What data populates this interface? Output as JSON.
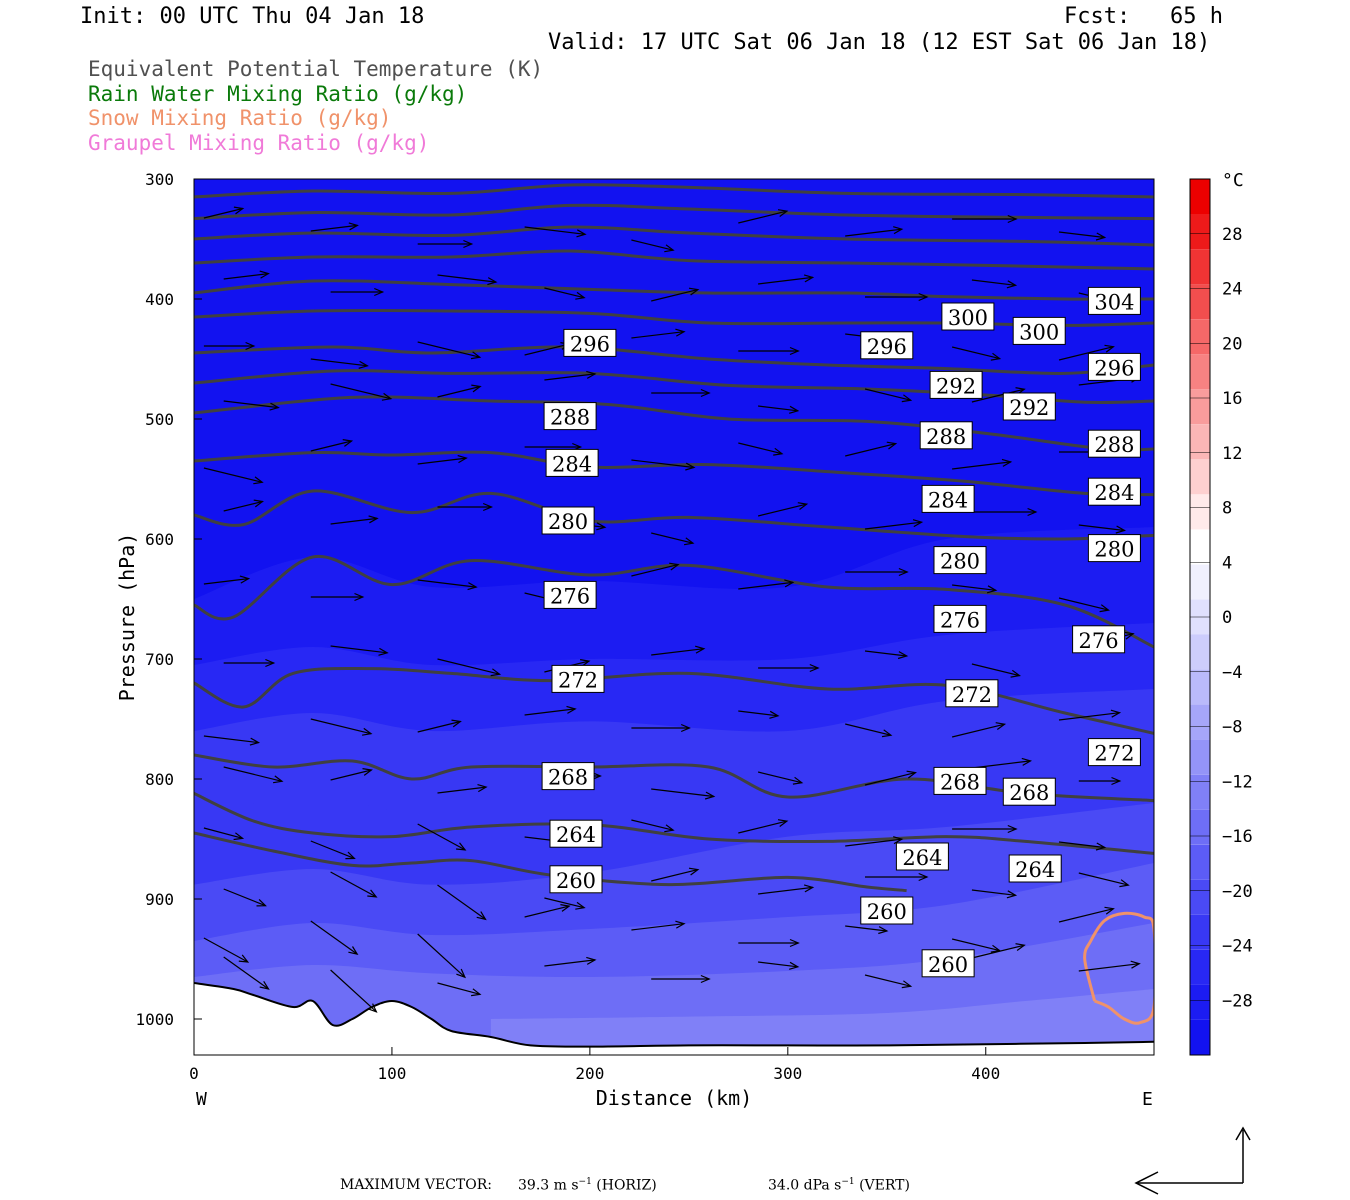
{
  "header": {
    "init": "Init: 00 UTC Thu 04 Jan 18",
    "fcst": "Fcst:   65 h",
    "valid": "Valid: 17 UTC Sat 06 Jan 18 (12 EST Sat 06 Jan 18)"
  },
  "legend": [
    {
      "label": "Equivalent Potential Temperature (K)",
      "color": "#505050"
    },
    {
      "label": "Rain Water Mixing Ratio (g/kg)",
      "color": "#0a7a0a"
    },
    {
      "label": "Snow Mixing Ratio (g/kg)",
      "color": "#f0926a"
    },
    {
      "label": "Graupel Mixing Ratio (g/kg)",
      "color": "#f07ad8"
    }
  ],
  "colorbar": {
    "unit": "°C",
    "tick_labels": [
      "28",
      "24",
      "20",
      "16",
      "12",
      "8",
      "4",
      "0",
      "−4",
      "−8",
      "−12",
      "−16",
      "−20",
      "−24",
      "−28"
    ],
    "tick_values": [
      28,
      24,
      20,
      16,
      12,
      8,
      4,
      0,
      -4,
      -8,
      -12,
      -16,
      -20,
      -24,
      -28
    ],
    "range": [
      -32,
      32
    ],
    "colors": [
      "#1212f0",
      "#1c1cf2",
      "#2828f4",
      "#3838f4",
      "#4a4af5",
      "#5c5cf6",
      "#6e6ef6",
      "#8080f7",
      "#9494f8",
      "#a6a6f9",
      "#babafb",
      "#cdcdfc",
      "#e0e0fd",
      "#f0f0fe",
      "#ffffff",
      "#ffeaea",
      "#fdd0d0",
      "#fbb6b6",
      "#f99c9c",
      "#f78282",
      "#f56868",
      "#f24e4e",
      "#f03434",
      "#ee1a1a",
      "#ec0000"
    ]
  },
  "footer": {
    "prefix": "MAXIMUM VECTOR:",
    "horiz_value": "39.3 m s",
    "horiz_unit": "(HORIZ)",
    "vert_value": "34.0 dPa s",
    "vert_unit": "(VERT)",
    "exponent": "−1"
  },
  "chart_data": {
    "type": "cross-section",
    "xlabel": "Distance (km)",
    "ylabel": "Pressure (hPa)",
    "xlim": [
      0,
      485
    ],
    "ylim": [
      1030,
      300
    ],
    "x_ticks": [
      0,
      100,
      200,
      300,
      400
    ],
    "y_ticks": [
      300,
      400,
      500,
      600,
      700,
      800,
      900,
      1000
    ],
    "x_end_labels": [
      "W",
      "E"
    ],
    "grid": false,
    "theta_e_contours": [
      {
        "value": 260,
        "points": [
          [
            0,
            845
          ],
          [
            40,
            860
          ],
          [
            80,
            872
          ],
          [
            110,
            870
          ],
          [
            140,
            868
          ],
          [
            180,
            880
          ],
          [
            240,
            888
          ],
          [
            300,
            882
          ],
          [
            340,
            890
          ],
          [
            360,
            893
          ]
        ]
      },
      {
        "value": 264,
        "points": [
          [
            0,
            812
          ],
          [
            30,
            835
          ],
          [
            60,
            845
          ],
          [
            100,
            848
          ],
          [
            140,
            840
          ],
          [
            200,
            838
          ],
          [
            260,
            850
          ],
          [
            320,
            852
          ],
          [
            380,
            848
          ],
          [
            420,
            852
          ],
          [
            485,
            862
          ]
        ]
      },
      {
        "value": 268,
        "points": [
          [
            0,
            780
          ],
          [
            40,
            790
          ],
          [
            80,
            785
          ],
          [
            110,
            800
          ],
          [
            140,
            790
          ],
          [
            200,
            790
          ],
          [
            260,
            790
          ],
          [
            300,
            815
          ],
          [
            360,
            800
          ],
          [
            420,
            812
          ],
          [
            485,
            818
          ]
        ]
      },
      {
        "value": 272,
        "points": [
          [
            0,
            720
          ],
          [
            25,
            740
          ],
          [
            50,
            712
          ],
          [
            90,
            708
          ],
          [
            130,
            712
          ],
          [
            180,
            718
          ],
          [
            250,
            712
          ],
          [
            320,
            725
          ],
          [
            380,
            722
          ],
          [
            440,
            745
          ],
          [
            485,
            762
          ]
        ]
      },
      {
        "value": 276,
        "points": [
          [
            0,
            655
          ],
          [
            20,
            665
          ],
          [
            60,
            615
          ],
          [
            100,
            638
          ],
          [
            140,
            618
          ],
          [
            200,
            630
          ],
          [
            250,
            622
          ],
          [
            320,
            640
          ],
          [
            380,
            642
          ],
          [
            440,
            655
          ],
          [
            485,
            690
          ]
        ]
      },
      {
        "value": 280,
        "points": [
          [
            0,
            580
          ],
          [
            25,
            588
          ],
          [
            60,
            560
          ],
          [
            110,
            578
          ],
          [
            150,
            562
          ],
          [
            200,
            585
          ],
          [
            250,
            582
          ],
          [
            320,
            590
          ],
          [
            390,
            598
          ],
          [
            440,
            600
          ],
          [
            485,
            597
          ]
        ]
      },
      {
        "value": 284,
        "points": [
          [
            0,
            535
          ],
          [
            60,
            528
          ],
          [
            100,
            530
          ],
          [
            150,
            528
          ],
          [
            200,
            540
          ],
          [
            260,
            538
          ],
          [
            330,
            545
          ],
          [
            390,
            552
          ],
          [
            450,
            562
          ],
          [
            485,
            563
          ]
        ]
      },
      {
        "value": 288,
        "points": [
          [
            0,
            495
          ],
          [
            80,
            482
          ],
          [
            150,
            485
          ],
          [
            210,
            488
          ],
          [
            270,
            500
          ],
          [
            340,
            502
          ],
          [
            400,
            512
          ],
          [
            460,
            525
          ],
          [
            485,
            525
          ]
        ]
      },
      {
        "value": 292,
        "points": [
          [
            0,
            470
          ],
          [
            70,
            460
          ],
          [
            130,
            462
          ],
          [
            200,
            462
          ],
          [
            270,
            472
          ],
          [
            340,
            475
          ],
          [
            400,
            480
          ],
          [
            450,
            486
          ],
          [
            485,
            485
          ]
        ]
      },
      {
        "value": 296,
        "points": [
          [
            0,
            445
          ],
          [
            70,
            440
          ],
          [
            120,
            445
          ],
          [
            190,
            440
          ],
          [
            260,
            450
          ],
          [
            320,
            455
          ],
          [
            380,
            458
          ],
          [
            440,
            462
          ],
          [
            485,
            455
          ]
        ]
      },
      {
        "value": 300,
        "points": [
          [
            0,
            415
          ],
          [
            60,
            410
          ],
          [
            130,
            410
          ],
          [
            200,
            412
          ],
          [
            260,
            420
          ],
          [
            330,
            420
          ],
          [
            380,
            420
          ],
          [
            440,
            422
          ],
          [
            485,
            420
          ]
        ]
      },
      {
        "value": 304,
        "points": [
          [
            0,
            395
          ],
          [
            60,
            385
          ],
          [
            130,
            388
          ],
          [
            200,
            392
          ],
          [
            260,
            395
          ],
          [
            330,
            395
          ],
          [
            380,
            398
          ],
          [
            440,
            400
          ],
          [
            485,
            400
          ]
        ]
      },
      {
        "value": 308,
        "points": [
          [
            0,
            370
          ],
          [
            60,
            365
          ],
          [
            130,
            365
          ],
          [
            190,
            360
          ],
          [
            250,
            368
          ],
          [
            330,
            370
          ],
          [
            400,
            372
          ],
          [
            485,
            375
          ]
        ]
      },
      {
        "value": 312,
        "points": [
          [
            0,
            350
          ],
          [
            60,
            345
          ],
          [
            130,
            347
          ],
          [
            190,
            340
          ],
          [
            250,
            345
          ],
          [
            330,
            350
          ],
          [
            420,
            352
          ],
          [
            485,
            355
          ]
        ]
      },
      {
        "value": 316,
        "points": [
          [
            0,
            333
          ],
          [
            60,
            328
          ],
          [
            130,
            330
          ],
          [
            190,
            322
          ],
          [
            250,
            325
          ],
          [
            330,
            330
          ],
          [
            420,
            332
          ],
          [
            485,
            333
          ]
        ]
      },
      {
        "value": 320,
        "points": [
          [
            0,
            315
          ],
          [
            60,
            310
          ],
          [
            130,
            312
          ],
          [
            190,
            305
          ],
          [
            250,
            307
          ],
          [
            330,
            312
          ],
          [
            420,
            313
          ],
          [
            485,
            315
          ]
        ]
      }
    ],
    "theta_e_labels": [
      {
        "x": 200,
        "p": 437,
        "text": "296"
      },
      {
        "x": 350,
        "p": 439,
        "text": "296"
      },
      {
        "x": 391,
        "p": 415,
        "text": "300"
      },
      {
        "x": 427,
        "p": 427,
        "text": "300"
      },
      {
        "x": 465,
        "p": 402,
        "text": "304"
      },
      {
        "x": 465,
        "p": 457,
        "text": "296"
      },
      {
        "x": 190,
        "p": 498,
        "text": "288"
      },
      {
        "x": 385,
        "p": 472,
        "text": "292"
      },
      {
        "x": 422,
        "p": 490,
        "text": "292"
      },
      {
        "x": 380,
        "p": 514,
        "text": "288"
      },
      {
        "x": 465,
        "p": 521,
        "text": "288"
      },
      {
        "x": 191,
        "p": 537,
        "text": "284"
      },
      {
        "x": 381,
        "p": 567,
        "text": "284"
      },
      {
        "x": 465,
        "p": 561,
        "text": "284"
      },
      {
        "x": 189,
        "p": 585,
        "text": "280"
      },
      {
        "x": 387,
        "p": 618,
        "text": "280"
      },
      {
        "x": 465,
        "p": 608,
        "text": "280"
      },
      {
        "x": 190,
        "p": 647,
        "text": "276"
      },
      {
        "x": 387,
        "p": 667,
        "text": "276"
      },
      {
        "x": 457,
        "p": 684,
        "text": "276"
      },
      {
        "x": 194,
        "p": 717,
        "text": "272"
      },
      {
        "x": 393,
        "p": 729,
        "text": "272"
      },
      {
        "x": 465,
        "p": 778,
        "text": "272"
      },
      {
        "x": 189,
        "p": 798,
        "text": "268"
      },
      {
        "x": 387,
        "p": 802,
        "text": "268"
      },
      {
        "x": 422,
        "p": 811,
        "text": "268"
      },
      {
        "x": 193,
        "p": 846,
        "text": "264"
      },
      {
        "x": 368,
        "p": 865,
        "text": "264"
      },
      {
        "x": 425,
        "p": 875,
        "text": "264"
      },
      {
        "x": 193,
        "p": 884,
        "text": "260"
      },
      {
        "x": 350,
        "p": 910,
        "text": "260"
      },
      {
        "x": 381,
        "p": 954,
        "text": "260"
      }
    ],
    "temperature_bands": [
      {
        "temp": -30,
        "upper": [
          [
            0,
            300
          ],
          [
            485,
            300
          ]
        ]
      },
      {
        "temp": -28,
        "upper": [
          [
            0,
            650
          ],
          [
            60,
            615
          ],
          [
            120,
            640
          ],
          [
            200,
            635
          ],
          [
            300,
            640
          ],
          [
            380,
            600
          ],
          [
            485,
            590
          ]
        ]
      },
      {
        "temp": -26,
        "upper": [
          [
            0,
            705
          ],
          [
            60,
            690
          ],
          [
            120,
            705
          ],
          [
            200,
            700
          ],
          [
            300,
            700
          ],
          [
            380,
            680
          ],
          [
            485,
            670
          ]
        ]
      },
      {
        "temp": -24,
        "upper": [
          [
            0,
            760
          ],
          [
            60,
            745
          ],
          [
            120,
            760
          ],
          [
            200,
            752
          ],
          [
            300,
            760
          ],
          [
            380,
            735
          ],
          [
            485,
            725
          ]
        ]
      },
      {
        "temp": -22,
        "upper": [
          [
            0,
            830
          ],
          [
            60,
            815
          ],
          [
            120,
            830
          ],
          [
            200,
            820
          ],
          [
            300,
            800
          ],
          [
            380,
            790
          ],
          [
            485,
            775
          ]
        ]
      },
      {
        "temp": -20,
        "upper": [
          [
            0,
            888
          ],
          [
            60,
            875
          ],
          [
            120,
            888
          ],
          [
            200,
            878
          ],
          [
            300,
            848
          ],
          [
            380,
            840
          ],
          [
            485,
            820
          ]
        ]
      },
      {
        "temp": -18,
        "upper": [
          [
            0,
            935
          ],
          [
            60,
            920
          ],
          [
            120,
            930
          ],
          [
            200,
            925
          ],
          [
            300,
            915
          ],
          [
            380,
            905
          ],
          [
            485,
            870
          ]
        ]
      },
      {
        "temp": -16,
        "upper": [
          [
            0,
            965
          ],
          [
            60,
            955
          ],
          [
            120,
            962
          ],
          [
            200,
            965
          ],
          [
            300,
            960
          ],
          [
            380,
            950
          ],
          [
            485,
            920
          ]
        ]
      },
      {
        "temp": -14,
        "upper": [
          [
            150,
            1000
          ],
          [
            250,
            998
          ],
          [
            350,
            995
          ],
          [
            420,
            985
          ],
          [
            485,
            975
          ]
        ]
      }
    ],
    "ground_surface": [
      [
        0,
        970
      ],
      [
        20,
        975
      ],
      [
        30,
        980
      ],
      [
        50,
        990
      ],
      [
        60,
        985
      ],
      [
        70,
        1005
      ],
      [
        80,
        1000
      ],
      [
        90,
        990
      ],
      [
        100,
        985
      ],
      [
        110,
        990
      ],
      [
        120,
        1000
      ],
      [
        130,
        1010
      ],
      [
        150,
        1015
      ],
      [
        170,
        1022
      ],
      [
        200,
        1023
      ],
      [
        250,
        1022
      ],
      [
        300,
        1022
      ],
      [
        350,
        1022
      ],
      [
        400,
        1021
      ],
      [
        450,
        1020
      ],
      [
        485,
        1019
      ]
    ],
    "snow_contour": [
      [
        455,
        985
      ],
      [
        462,
        990
      ],
      [
        470,
        1000
      ],
      [
        478,
        1003
      ],
      [
        485,
        990
      ],
      [
        485,
        925
      ],
      [
        480,
        915
      ],
      [
        470,
        912
      ],
      [
        460,
        918
      ],
      [
        453,
        935
      ],
      [
        450,
        950
      ]
    ],
    "colorbar_range": [
      -32,
      32
    ]
  }
}
